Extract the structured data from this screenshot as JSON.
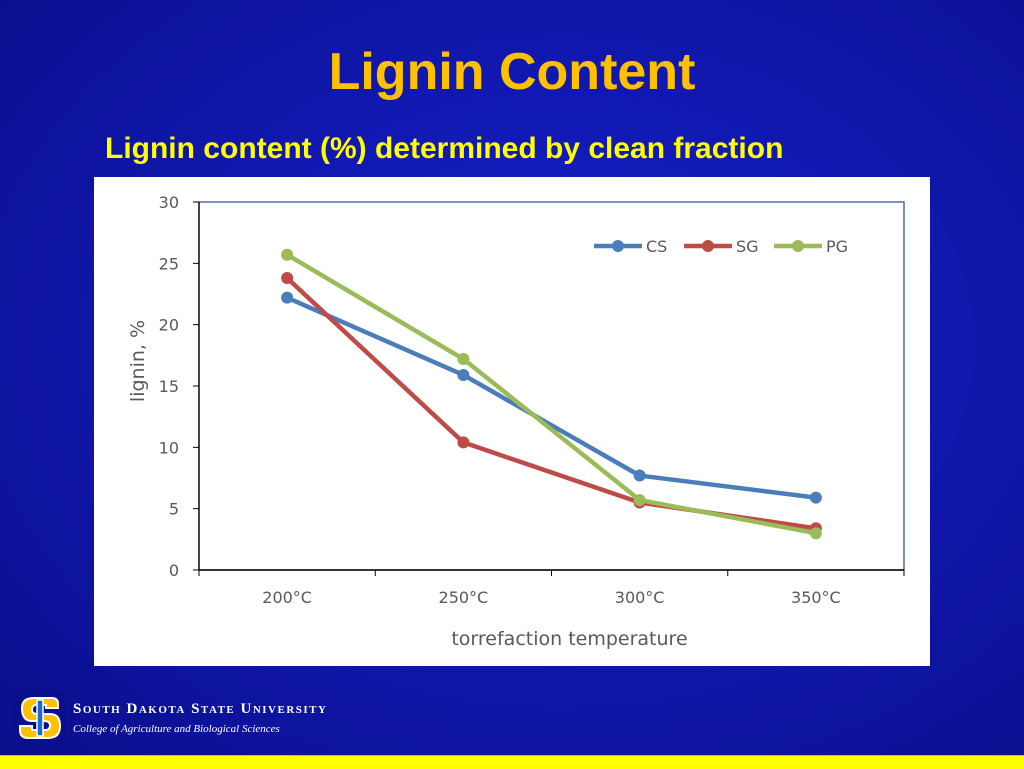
{
  "slide": {
    "title": "Lignin Content",
    "subtitle": "Lignin content (%) determined by clean fraction"
  },
  "footer": {
    "university": "South Dakota State University",
    "college": "College of Agriculture and Biological Sciences",
    "logo_text": "SD",
    "logo_icon": "sdsu-logo-icon"
  },
  "colors": {
    "background": "#1018b0",
    "title": "#ffc000",
    "subtitle": "#ffff00",
    "footer_bar": "#ffff00"
  },
  "chart_data": {
    "type": "line",
    "title": "",
    "xlabel": "torrefaction temperature",
    "ylabel": "lignin, %",
    "categories": [
      "200°C",
      "250°C",
      "300°C",
      "350°C"
    ],
    "ylim": [
      0,
      30
    ],
    "yticks": [
      0,
      5,
      10,
      15,
      20,
      25,
      30
    ],
    "grid": false,
    "legend_position": "top-right",
    "series": [
      {
        "name": "CS",
        "color": "#4a7ebb",
        "values": [
          22.2,
          15.9,
          7.7,
          5.9
        ]
      },
      {
        "name": "SG",
        "color": "#be4b48",
        "values": [
          23.8,
          10.4,
          5.5,
          3.4
        ]
      },
      {
        "name": "PG",
        "color": "#9bbb59",
        "values": [
          25.7,
          17.2,
          5.7,
          3.0
        ]
      }
    ]
  }
}
